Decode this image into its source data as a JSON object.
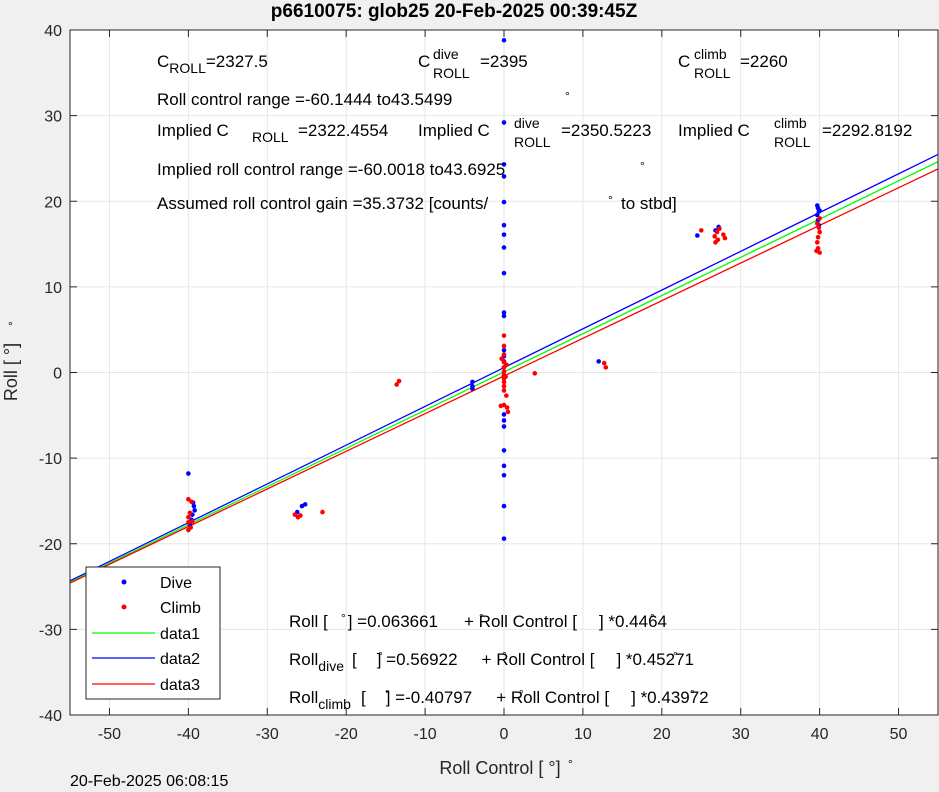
{
  "chart_data": {
    "type": "scatter",
    "title": "p6610075: glob25 20-Feb-2025 00:39:45Z",
    "xlabel": "Roll Control [   °]",
    "ylabel": "Roll [  °]",
    "xlim": [
      -55,
      55
    ],
    "ylim": [
      -40,
      40
    ],
    "xticks": [
      -50,
      -40,
      -30,
      -20,
      -10,
      0,
      10,
      20,
      30,
      40,
      50
    ],
    "yticks": [
      -40,
      -30,
      -20,
      -10,
      0,
      10,
      20,
      30,
      40
    ],
    "grid": true,
    "legend_position": "bottom-left",
    "series": [
      {
        "name": "Dive",
        "kind": "points",
        "color": "#0000ff",
        "points": [
          [
            -40,
            -11.8
          ],
          [
            -39.4,
            -15.2
          ],
          [
            -39.3,
            -15.6
          ],
          [
            -39.2,
            -16.1
          ],
          [
            -39.5,
            -16.6
          ],
          [
            -39.6,
            -17.2
          ],
          [
            -39.8,
            -17.8
          ],
          [
            -26.2,
            -16.3
          ],
          [
            -25.6,
            -15.6
          ],
          [
            -25.2,
            -15.4
          ],
          [
            -4,
            -1.1
          ],
          [
            -4,
            -1.6
          ],
          [
            -4,
            -1.9
          ],
          [
            0,
            38.8
          ],
          [
            0,
            29.2
          ],
          [
            0,
            24.3
          ],
          [
            0,
            22.9
          ],
          [
            0,
            19.9
          ],
          [
            0,
            17.2
          ],
          [
            0,
            16.1
          ],
          [
            0,
            14.6
          ],
          [
            0,
            11.6
          ],
          [
            0,
            7
          ],
          [
            0,
            6.6
          ],
          [
            0,
            2.6
          ],
          [
            0,
            1.9
          ],
          [
            0,
            1.3
          ],
          [
            0,
            0.6
          ],
          [
            0,
            -0.5
          ],
          [
            0,
            -4.9
          ],
          [
            0,
            -5.6
          ],
          [
            0,
            -6.3
          ],
          [
            0,
            -9.1
          ],
          [
            0,
            -10.9
          ],
          [
            0,
            -12
          ],
          [
            0,
            -15.6
          ],
          [
            0,
            -19.4
          ],
          [
            12,
            1.3
          ],
          [
            24.5,
            16
          ],
          [
            26.8,
            16.6
          ],
          [
            27.2,
            17
          ],
          [
            39.7,
            19.5
          ],
          [
            39.8,
            19.2
          ],
          [
            39.9,
            18.8
          ],
          [
            39.7,
            18.4
          ],
          [
            40,
            18.9
          ],
          [
            39.8,
            17.8
          ],
          [
            39.9,
            17.2
          ]
        ]
      },
      {
        "name": "Climb",
        "kind": "points",
        "color": "#ff0000",
        "points": [
          [
            -40,
            -14.8
          ],
          [
            -39.6,
            -15.1
          ],
          [
            -39.8,
            -16.4
          ],
          [
            -40,
            -16.9
          ],
          [
            -40,
            -17.5
          ],
          [
            -39.7,
            -18.1
          ],
          [
            -40,
            -18.4
          ],
          [
            -39.5,
            -17.4
          ],
          [
            -26.5,
            -16.6
          ],
          [
            -26.1,
            -16.9
          ],
          [
            -25.8,
            -16.7
          ],
          [
            -23,
            -16.3
          ],
          [
            -13.6,
            -1.4
          ],
          [
            -13.3,
            -1
          ],
          [
            0,
            4.3
          ],
          [
            0,
            3.1
          ],
          [
            0,
            2.1
          ],
          [
            0,
            1.2
          ],
          [
            0,
            0.6
          ],
          [
            0,
            0.1
          ],
          [
            0,
            -0.3
          ],
          [
            0,
            -0.7
          ],
          [
            0,
            -1.1
          ],
          [
            0,
            -1.6
          ],
          [
            0,
            -2.1
          ],
          [
            0,
            -3.8
          ],
          [
            0.2,
            -0.5
          ],
          [
            0.3,
            0.9
          ],
          [
            0.3,
            -2.7
          ],
          [
            0.4,
            -4.1
          ],
          [
            0.5,
            -4.6
          ],
          [
            -0.3,
            1.6
          ],
          [
            -0.4,
            -3.9
          ],
          [
            3.9,
            -0.1
          ],
          [
            12.7,
            1.1
          ],
          [
            12.9,
            0.6
          ],
          [
            25,
            16.6
          ],
          [
            26.7,
            15.9
          ],
          [
            27,
            16.4
          ],
          [
            27.1,
            15.5
          ],
          [
            27.3,
            16.8
          ],
          [
            27.8,
            16.1
          ],
          [
            28,
            15.7
          ],
          [
            26.8,
            15.2
          ],
          [
            39.6,
            14.2
          ],
          [
            39.8,
            14.5
          ],
          [
            40,
            14
          ],
          [
            39.7,
            15.2
          ],
          [
            39.8,
            15.8
          ],
          [
            40,
            16.4
          ],
          [
            39.9,
            16.9
          ],
          [
            39.7,
            17.4
          ],
          [
            40,
            18
          ]
        ]
      },
      {
        "name": "data1",
        "kind": "line",
        "color": "#00ff00",
        "intercept": 0.063661,
        "slope": 0.4464
      },
      {
        "name": "data2",
        "kind": "line",
        "color": "#0000ff",
        "intercept": 0.56922,
        "slope": 0.45271
      },
      {
        "name": "data3",
        "kind": "line",
        "color": "#ff0000",
        "intercept": -0.40797,
        "slope": 0.43972
      }
    ],
    "annotations": {
      "croll_base": "C",
      "croll_sub": "ROLL",
      "croll_val": "=2327.5",
      "cdive_base": "C",
      "cdive_sup": "dive",
      "cdive_sub": "ROLL",
      "cdive_val": "=2395",
      "cclimb_base": "C",
      "cclimb_sup": "climb",
      "cclimb_sub": "ROLL",
      "cclimb_val": "=2260",
      "range": "Roll control range =-60.1444 to43.5499",
      "impl1_base": "Implied C",
      "impl1_sub": "ROLL",
      "impl1_val": "=2322.4554",
      "impl2_base": "Implied C",
      "impl2_sup": "dive",
      "impl2_sub": "ROLL",
      "impl2_val": "=2350.5223",
      "impl3_base": "Implied C",
      "impl3_sup": "climb",
      "impl3_sub": "ROLL",
      "impl3_val": "=2292.8192",
      "impl_range": "Implied roll control range =-60.0018 to43.6925",
      "gain_a": "Assumed roll control gain =35.3732 [counts/",
      "gain_b": "to stbd]",
      "eq1_a": "Roll [",
      "eq1_b": "] =0.063661",
      "eq1_c": "+ Roll Control [",
      "eq1_d": "] *0.4464",
      "eq2_a": "Roll",
      "eq2_sub": "dive",
      "eq2_b": "[",
      "eq2_c": "] =0.56922",
      "eq2_d": "+ Roll Control [",
      "eq2_e": "] *0.45271",
      "eq3_a": "Roll",
      "eq3_sub": "climb",
      "eq3_b": "[",
      "eq3_c": "] =-0.40797",
      "eq3_d": "+ Roll Control [",
      "eq3_e": "] *0.43972",
      "degree_symbol": "°"
    }
  },
  "timestamp": "20-Feb-2025 06:08:15"
}
